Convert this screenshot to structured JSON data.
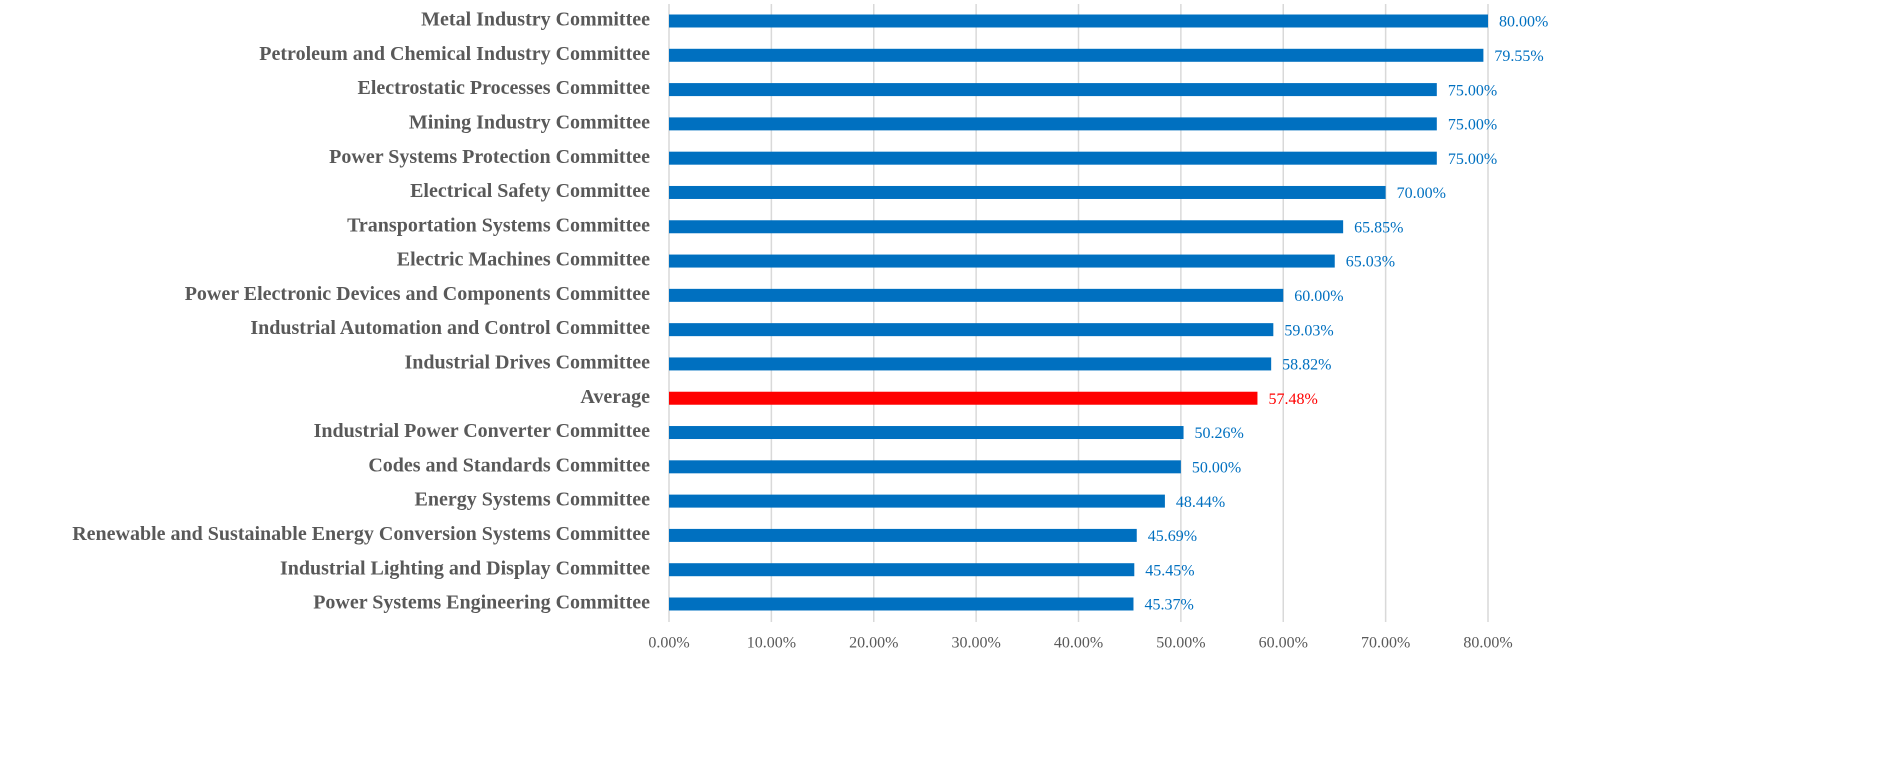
{
  "chart_data": {
    "type": "barh",
    "categories": [
      "Metal Industry Committee",
      "Petroleum and Chemical Industry Committee",
      "Electrostatic Processes Committee",
      "Mining Industry Committee",
      "Power Systems Protection Committee",
      "Electrical Safety Committee",
      "Transportation Systems Committee",
      "Electric Machines Committee",
      "Power Electronic Devices and Components Committee",
      "Industrial Automation and Control Committee",
      "Industrial Drives Committee",
      "Average",
      "Industrial Power Converter Committee",
      "Codes and Standards Committee",
      "Energy Systems Committee",
      "Renewable and Sustainable Energy Conversion Systems Committee",
      "Industrial Lighting and Display Committee",
      "Power Systems Engineering Committee"
    ],
    "values": [
      80,
      79.55,
      75,
      75,
      75,
      70,
      65.85,
      65.03,
      60,
      59.03,
      58.82,
      57.48,
      50.26,
      50,
      48.44,
      45.69,
      45.45,
      45.37
    ],
    "value_labels": [
      "80.00%",
      "79.55%",
      "75.00%",
      "75.00%",
      "75.00%",
      "70.00%",
      "65.85%",
      "65.03%",
      "60.00%",
      "59.03%",
      "58.82%",
      "57.48%",
      "50.26%",
      "50.00%",
      "48.44%",
      "45.69%",
      "45.45%",
      "45.37%"
    ],
    "colors": [
      "#0070c0",
      "#0070c0",
      "#0070c0",
      "#0070c0",
      "#0070c0",
      "#0070c0",
      "#0070c0",
      "#0070c0",
      "#0070c0",
      "#0070c0",
      "#0070c0",
      "#ff0000",
      "#0070c0",
      "#0070c0",
      "#0070c0",
      "#0070c0",
      "#0070c0",
      "#0070c0"
    ],
    "xlim": [
      0,
      80
    ],
    "xticks": [
      {
        "value": 0,
        "label": "0.00%"
      },
      {
        "value": 10,
        "label": "10.00%"
      },
      {
        "value": 20,
        "label": "20.00%"
      },
      {
        "value": 30,
        "label": "30.00%"
      },
      {
        "value": 40,
        "label": "40.00%"
      },
      {
        "value": 50,
        "label": "50.00%"
      },
      {
        "value": 60,
        "label": "60.00%"
      },
      {
        "value": 70,
        "label": "70.00%"
      },
      {
        "value": 80,
        "label": "80.00%"
      }
    ],
    "grid": true
  }
}
